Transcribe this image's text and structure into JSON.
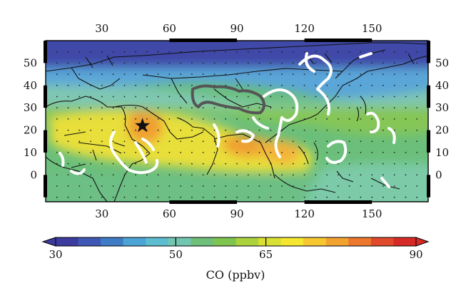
{
  "map": {
    "title": "",
    "x_ticks": [
      "30",
      "60",
      "90",
      "120",
      "150"
    ],
    "x_tick_values": [
      30,
      60,
      90,
      120,
      150
    ],
    "y_ticks": [
      "0",
      "10",
      "20",
      "30",
      "40",
      "50"
    ],
    "y_tick_values": [
      0,
      10,
      20,
      30,
      40,
      50
    ],
    "lon_range": [
      5,
      175
    ],
    "lat_range": [
      -12,
      60
    ],
    "star_marker": {
      "lon": 48,
      "lat": 22
    },
    "field_colors": {
      "north_band": "#3a4aa8",
      "blue_band": "#5aa0d6",
      "mid_band": "#7fc7b2",
      "green_band": "#7dc36b",
      "yellow_band": "#e8df3a",
      "orange_core": "#f0a030",
      "south_band": "#6bbf7a"
    },
    "contour_white": "#ffffff",
    "contour_gray": "#555555",
    "coastline_color": "#111111",
    "frame_color": "#000000"
  },
  "colorbar": {
    "label": "CO (ppbv)",
    "ticks": [
      "30",
      "50",
      "65",
      "90"
    ],
    "tick_values": [
      30,
      50,
      65,
      90
    ],
    "range": [
      30,
      90
    ],
    "colors": [
      "#3b3ba0",
      "#3f58b5",
      "#3f7cc6",
      "#4ba3d6",
      "#5cbcd0",
      "#72c6b0",
      "#6ebf7a",
      "#7fc44f",
      "#a9d23c",
      "#d9e033",
      "#f5e62f",
      "#f7c72f",
      "#f2a22f",
      "#ec772d",
      "#e04a2a",
      "#d62a26"
    ]
  }
}
